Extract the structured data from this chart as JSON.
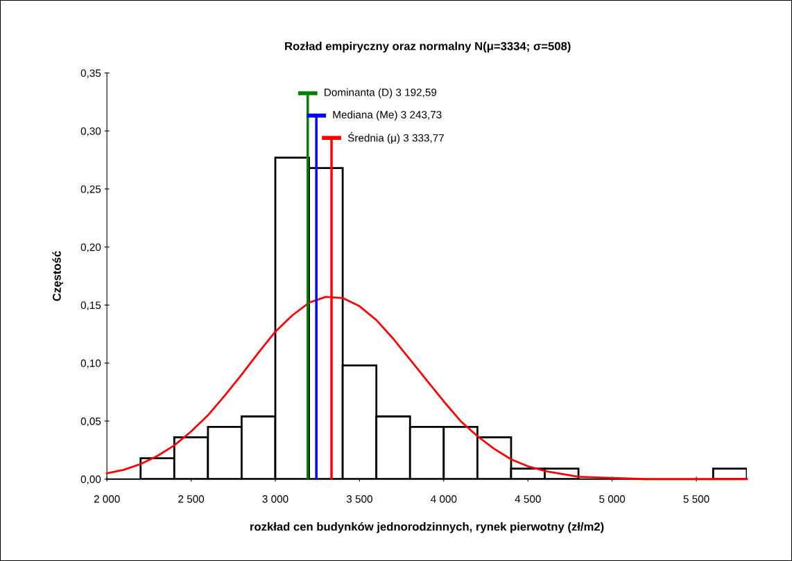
{
  "chart_data": {
    "type": "histogram",
    "title": "Rozład empiryczny oraz normalny N(μ=3334; σ=508)",
    "xlabel": "rozkład cen budynków jednorodzinnych, rynek pierwotny (zł/m2)",
    "ylabel": "Częstość",
    "bins": [
      2200,
      2400,
      2600,
      2800,
      3000,
      3200,
      3400,
      3600,
      3800,
      4000,
      4200,
      4400,
      4600,
      4800,
      5000,
      5200,
      5400,
      5600,
      5800
    ],
    "values": [
      0.018,
      0.036,
      0.045,
      0.054,
      0.277,
      0.268,
      0.098,
      0.054,
      0.045,
      0.045,
      0.036,
      0.009,
      0.009,
      0,
      0,
      0,
      0,
      0.009
    ],
    "color": "#ffffff",
    "series": [
      {
        "type": "line",
        "color": "#ff0000",
        "x": [
          2000,
          2100,
          2200,
          2300,
          2400,
          2500,
          2600,
          2700,
          2800,
          2900,
          3000,
          3100,
          3200,
          3300,
          3400,
          3500,
          3600,
          3700,
          3800,
          3900,
          4000,
          4100,
          4200,
          4300,
          4400,
          4500,
          4600,
          4800,
          5000,
          5200,
          5500,
          5800
        ],
        "values": [
          0.005,
          0.008,
          0.013,
          0.02,
          0.029,
          0.041,
          0.055,
          0.072,
          0.09,
          0.109,
          0.127,
          0.141,
          0.152,
          0.157,
          0.156,
          0.149,
          0.137,
          0.121,
          0.103,
          0.085,
          0.067,
          0.05,
          0.037,
          0.026,
          0.017,
          0.011,
          0.007,
          0.002,
          0.001,
          0,
          0,
          0
        ]
      }
    ],
    "ref_lines": [
      {
        "axis": "x",
        "value": 3192.59,
        "label": "Dominanta (D) 3 192,59",
        "color": "#008000"
      },
      {
        "axis": "x",
        "value": 3243.73,
        "label": "Mediana (Me) 3 243,73",
        "color": "#0000ff"
      },
      {
        "axis": "x",
        "value": 3333.77,
        "label": "Średnia (μ) 3 333,77",
        "color": "#ff0000"
      }
    ],
    "xlim": [
      2000,
      5800
    ],
    "xticks": [
      {
        "value": 2000,
        "label": "2 000"
      },
      {
        "value": 2500,
        "label": "2 500"
      },
      {
        "value": 3000,
        "label": "3 000"
      },
      {
        "value": 3500,
        "label": "3 500"
      },
      {
        "value": 4000,
        "label": "4 000"
      },
      {
        "value": 4500,
        "label": "4 500"
      },
      {
        "value": 5000,
        "label": "5 000"
      },
      {
        "value": 5500,
        "label": "5 500"
      }
    ],
    "ylim": [
      0,
      0.35
    ],
    "yticks": [
      {
        "value": 0,
        "label": "0,00"
      },
      {
        "value": 0.05,
        "label": "0,05"
      },
      {
        "value": 0.1,
        "label": "0,10"
      },
      {
        "value": 0.15,
        "label": "0,15"
      },
      {
        "value": 0.2,
        "label": "0,20"
      },
      {
        "value": 0.25,
        "label": "0,25"
      },
      {
        "value": 0.3,
        "label": "0,30"
      },
      {
        "value": 0.35,
        "label": "0,35"
      }
    ],
    "grid": false,
    "legend": false
  }
}
